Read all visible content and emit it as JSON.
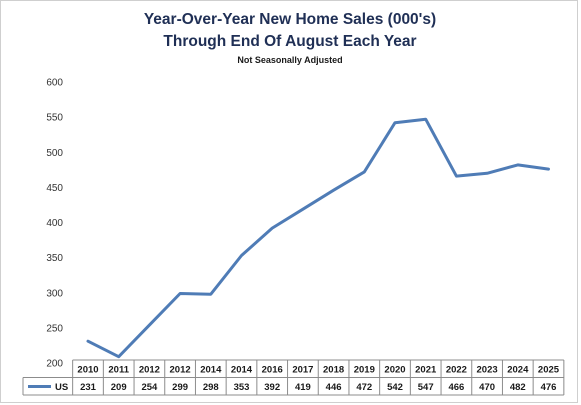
{
  "chart_data": {
    "type": "line",
    "title": "Year-Over-Year New Home Sales (000's)",
    "subtitle": "Through End Of August Each Year",
    "note": "Not Seasonally Adjusted",
    "categories": [
      "2010",
      "2011",
      "2012",
      "2012",
      "2014",
      "2014",
      "2016",
      "2017",
      "2018",
      "2019",
      "2020",
      "2021",
      "2022",
      "2023",
      "2024",
      "2025"
    ],
    "series": [
      {
        "name": "US",
        "color": "#4f7cb6",
        "values": [
          231,
          209,
          254,
          299,
          298,
          353,
          392,
          419,
          446,
          472,
          542,
          547,
          466,
          470,
          482,
          476
        ]
      }
    ],
    "ylim": [
      200,
      600
    ],
    "yticks": [
      200,
      250,
      300,
      350,
      400,
      450,
      500,
      550,
      600
    ],
    "grid": false,
    "legend": "data-table"
  }
}
